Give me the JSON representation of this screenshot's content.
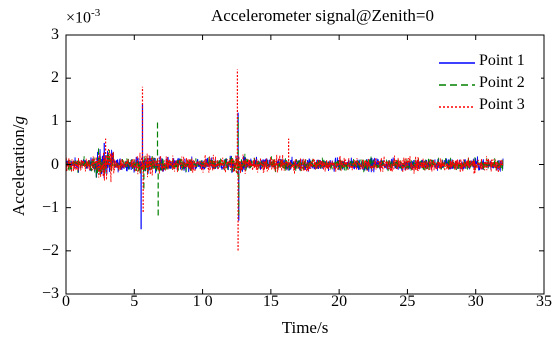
{
  "chart_data": {
    "type": "line",
    "title": "Accelerometer signal@Zenith=0",
    "xlabel": "Time/s",
    "ylabel_text": "Acceleration/",
    "ylabel_var": "g",
    "y_scale_label_base": "×10",
    "y_scale_label_exp": "-3",
    "xlim": [
      0,
      35
    ],
    "ylim": [
      -3,
      3
    ],
    "x_ticks": [
      "0",
      "5",
      "1 0",
      "15",
      "20",
      "25",
      "30",
      "35"
    ],
    "y_ticks": [
      "3",
      "2",
      "1",
      "0",
      "−1",
      "−2",
      "−3"
    ],
    "x_tick_values": [
      0,
      5,
      10,
      15,
      20,
      25,
      30,
      35
    ],
    "y_tick_values": [
      3,
      2,
      1,
      0,
      -1,
      -2,
      -3
    ],
    "legend_position": "top-right",
    "signal_end_time": 32,
    "series": [
      {
        "name": "Point 1",
        "color": "#0000ff",
        "style": "solid",
        "baseline_amplitude": 0.12,
        "spikes": [
          {
            "x": 5.5,
            "y": -1.5
          },
          {
            "x": 5.6,
            "y": 1.4
          },
          {
            "x": 12.6,
            "y": 1.2
          },
          {
            "x": 12.65,
            "y": -1.3
          },
          {
            "x": 2.8,
            "y": 0.5
          }
        ]
      },
      {
        "name": "Point 2",
        "color": "#008000",
        "style": "dashed",
        "baseline_amplitude": 0.12,
        "spikes": [
          {
            "x": 6.7,
            "y": 1.0
          },
          {
            "x": 6.75,
            "y": -1.2
          },
          {
            "x": 12.6,
            "y": 1.1
          },
          {
            "x": 12.65,
            "y": -1.2
          },
          {
            "x": 5.7,
            "y": -0.6
          }
        ]
      },
      {
        "name": "Point 3",
        "color": "#ff0000",
        "style": "dotted",
        "baseline_amplitude": 0.14,
        "spikes": [
          {
            "x": 5.6,
            "y": 1.8
          },
          {
            "x": 5.65,
            "y": -1.1
          },
          {
            "x": 12.55,
            "y": 2.2
          },
          {
            "x": 12.6,
            "y": -2.0
          },
          {
            "x": 2.9,
            "y": 0.6
          },
          {
            "x": 16.3,
            "y": 0.6
          }
        ]
      }
    ]
  }
}
